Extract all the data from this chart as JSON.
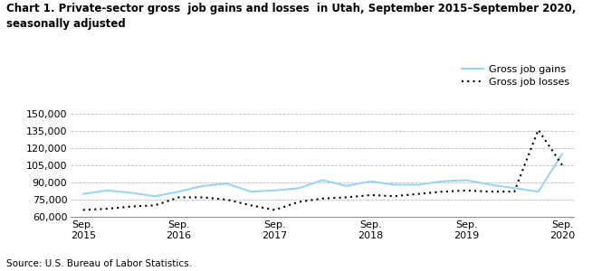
{
  "title": "Chart 1. Private-sector gross  job gains and losses  in Utah, September 2015–September 2020,\nseasonally adjusted",
  "source": "Source: U.S. Bureau of Labor Statistics.",
  "legend_gains": "Gross job gains",
  "legend_losses": "Gross job losses",
  "gains_data": [
    80000,
    83000,
    81000,
    78000,
    82000,
    87000,
    89000,
    82000,
    83000,
    85000,
    92000,
    87000,
    91000,
    88000,
    88000,
    91000,
    92000,
    88000,
    85000,
    82000,
    115000
  ],
  "losses_data": [
    66000,
    67000,
    69000,
    70000,
    77000,
    77000,
    75000,
    70000,
    66000,
    73000,
    76000,
    77000,
    79000,
    78000,
    80000,
    82000,
    83000,
    82000,
    82000,
    136000,
    105000
  ],
  "sep_positions": [
    0,
    4,
    8,
    12,
    16,
    20
  ],
  "x_tick_labels": [
    "Sep.\n2015",
    "Sep.\n2016",
    "Sep.\n2017",
    "Sep.\n2018",
    "Sep.\n2019",
    "Sep.\n2020"
  ],
  "ylim": [
    60000,
    150000
  ],
  "yticks": [
    60000,
    75000,
    90000,
    105000,
    120000,
    135000,
    150000
  ],
  "line_color_gains": "#9DD4EF",
  "line_color_losses": "#000000",
  "grid_color": "#BBBBBB",
  "bg_color": "#FFFFFF",
  "title_fontsize": 8.5,
  "axis_fontsize": 8,
  "legend_fontsize": 8,
  "source_fontsize": 7.5
}
